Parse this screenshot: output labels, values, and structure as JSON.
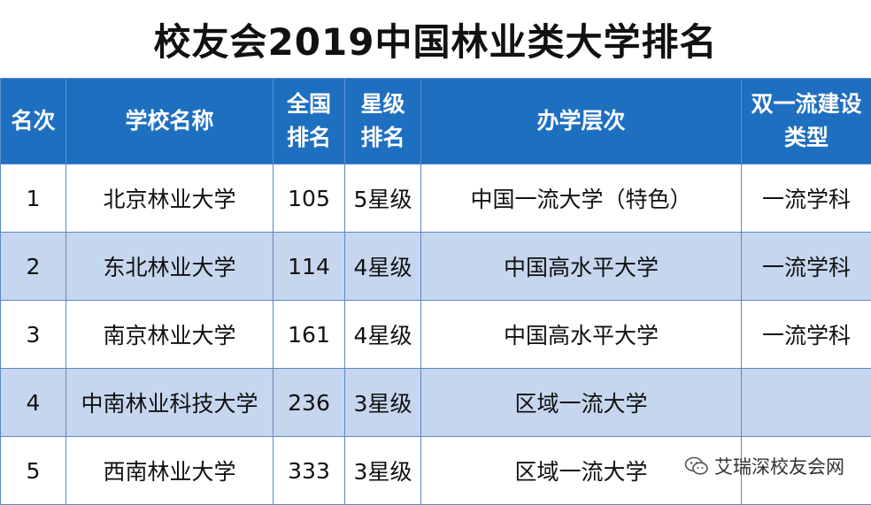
{
  "title": "校友会2019中国林业类大学排名",
  "headers": [
    "名次",
    "学校名称",
    "全国\n排名",
    "星级\n排名",
    "办学层次",
    "双一流建设\n类型"
  ],
  "rows": [
    {
      "rank": "1",
      "school": "北京林业大学",
      "national": "105",
      "star": "5星级",
      "level": "中国一流大学（特色）",
      "type": "一流学科"
    },
    {
      "rank": "2",
      "school": "东北林业大学",
      "national": "114",
      "star": "4星级",
      "level": "中国高水平大学",
      "type": "一流学科"
    },
    {
      "rank": "3",
      "school": "南京林业大学",
      "national": "161",
      "star": "4星级",
      "level": "中国高水平大学",
      "type": "一流学科"
    },
    {
      "rank": "4",
      "school": "中南林业科技大学",
      "national": "236",
      "star": "3星级",
      "level": "区域一流大学",
      "type": ""
    },
    {
      "rank": "5",
      "school": "西南林业大学",
      "national": "333",
      "star": "3星级",
      "level": "区域一流大学",
      "type": ""
    }
  ],
  "watermark": {
    "text": "艾瑞深校友会网",
    "icon": "wechat-icon"
  },
  "colors": {
    "header": "#1f6fc1",
    "alt_row": "#c5d6ee"
  }
}
